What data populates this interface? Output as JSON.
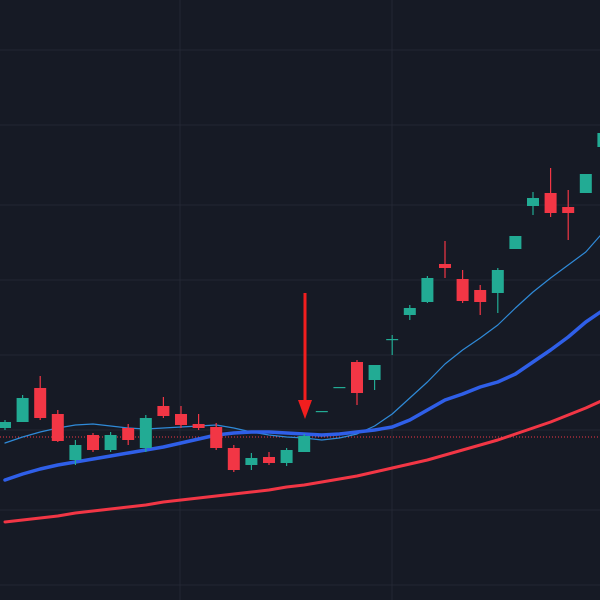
{
  "chart_data": {
    "type": "candlestick",
    "ylim": [
      0,
      600
    ],
    "up_color": "#22ab94",
    "down_color": "#f23645",
    "open": [
      172,
      178,
      212,
      186,
      140,
      165,
      150,
      172,
      152,
      194,
      186,
      176,
      173,
      152,
      135,
      143,
      137,
      148,
      188,
      212,
      238,
      220,
      260,
      285,
      298,
      336,
      321,
      310,
      307,
      351,
      394,
      407,
      393,
      407,
      453
    ],
    "high": [
      180,
      205,
      224,
      190,
      160,
      167,
      168,
      176,
      185,
      203,
      194,
      186,
      177,
      155,
      147,
      148,
      152,
      166,
      189,
      213,
      240,
      235,
      265,
      295,
      324,
      359,
      330,
      315,
      332,
      364,
      408,
      432,
      410,
      426,
      470
    ],
    "low": [
      170,
      178,
      180,
      158,
      135,
      148,
      148,
      155,
      148,
      182,
      172,
      170,
      150,
      128,
      130,
      135,
      134,
      148,
      188,
      212,
      195,
      210,
      245,
      280,
      297,
      322,
      297,
      285,
      287,
      351,
      385,
      383,
      360,
      407,
      450
    ],
    "close": [
      178,
      202,
      182,
      159,
      155,
      150,
      165,
      160,
      182,
      184,
      175,
      172,
      152,
      130,
      142,
      137,
      150,
      164,
      189,
      213,
      207,
      235,
      261,
      292,
      322,
      332,
      299,
      298,
      330,
      364,
      402,
      387,
      387,
      426,
      467
    ],
    "series": [
      {
        "color": "#2f8ad8",
        "values": [
          157,
          163,
          168,
          172,
          175,
          176,
          174,
          172,
          171,
          172,
          173,
          174,
          175,
          172,
          168,
          165,
          163,
          162,
          160,
          162,
          166,
          174,
          186,
          202,
          218,
          236,
          250,
          262,
          275,
          292,
          308,
          322,
          335,
          348,
          368
        ]
      },
      {
        "color": "#2f5fe8",
        "values": [
          120,
          126,
          131,
          135,
          138,
          141,
          144,
          147,
          150,
          153,
          157,
          161,
          165,
          167,
          168,
          168,
          167,
          166,
          165,
          166,
          168,
          170,
          173,
          180,
          190,
          200,
          206,
          213,
          218,
          226,
          238,
          250,
          263,
          278,
          290
        ]
      },
      {
        "color": "#f23645",
        "values": [
          78,
          80,
          82,
          84,
          87,
          89,
          91,
          93,
          95,
          98,
          100,
          102,
          104,
          106,
          108,
          110,
          113,
          115,
          118,
          121,
          124,
          128,
          132,
          136,
          140,
          145,
          150,
          155,
          160,
          166,
          172,
          178,
          185,
          192,
          200
        ]
      }
    ],
    "price_line": {
      "value": 163,
      "color": "#f23645"
    }
  }
}
